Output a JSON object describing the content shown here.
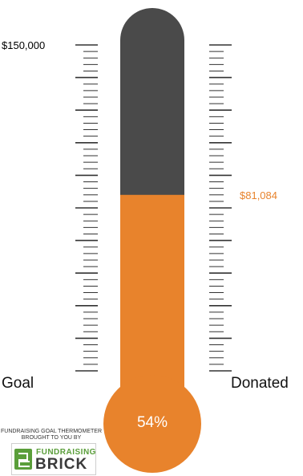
{
  "thermometer": {
    "goal_amount": "$150,000",
    "donated_amount": "$81,084",
    "goal_label": "Goal",
    "donated_label": "Donated",
    "percent_label": "54%",
    "progress_fraction": 0.54
  },
  "branding": {
    "caption_line1": "FUNDRAISING GOAL THERMOMETER",
    "caption_line2": "BROUGHT TO YOU BY",
    "logo_top": "FUNDRAISING",
    "logo_bottom": "BRICK"
  },
  "colors": {
    "fill": "#e8832c",
    "tube": "#4a4a4a",
    "ticks": "#333333",
    "donated_text": "#e8832c"
  }
}
